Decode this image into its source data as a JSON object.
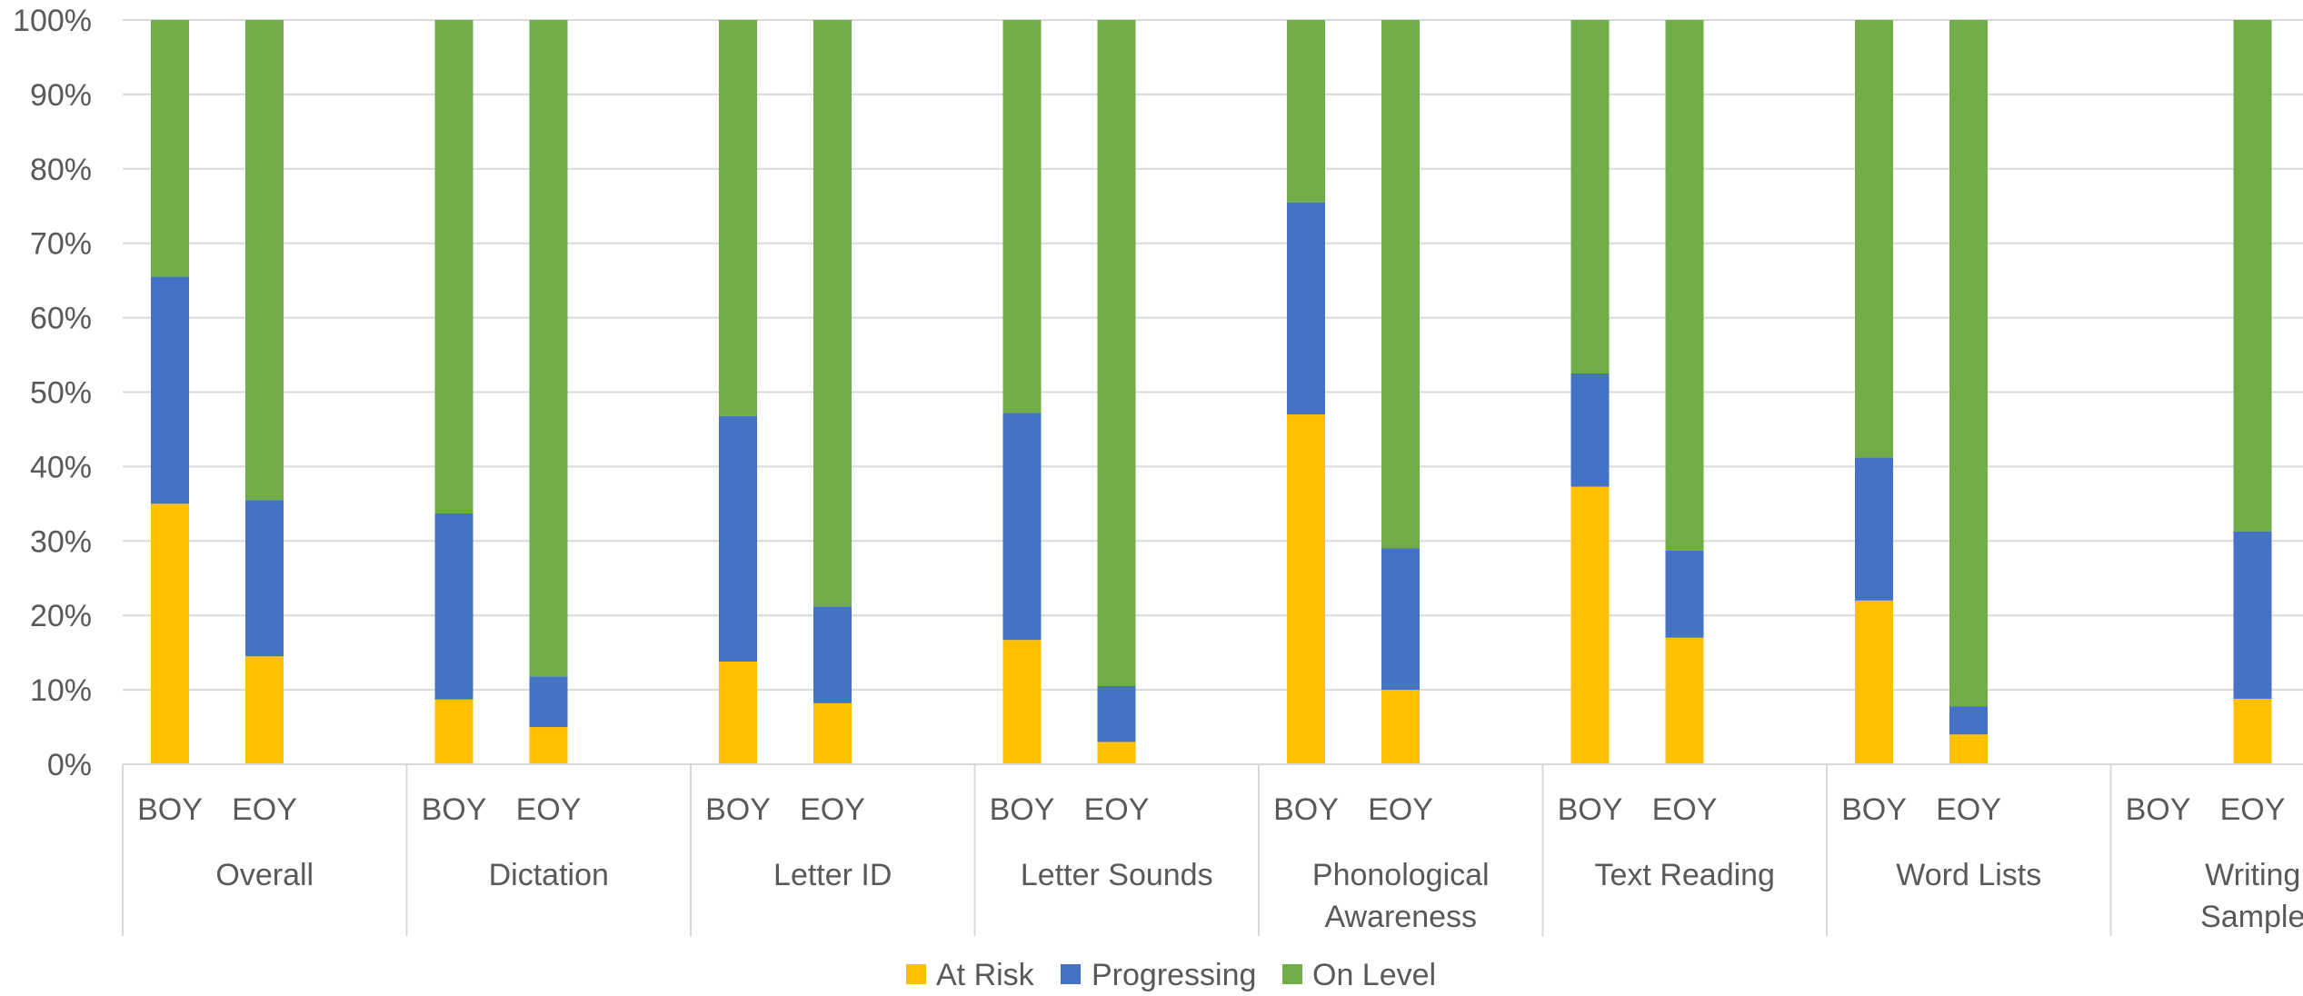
{
  "chart_data": {
    "type": "bar",
    "stacked": true,
    "percent_stacked": true,
    "y_tick_labels": [
      "0%",
      "10%",
      "20%",
      "30%",
      "40%",
      "50%",
      "60%",
      "70%",
      "80%",
      "90%",
      "100%"
    ],
    "ylim": [
      0,
      100
    ],
    "grid": true,
    "legend_position": "bottom",
    "groups": [
      "Overall",
      "Dictation",
      "Letter ID",
      "Letter Sounds",
      "Phonological Awareness",
      "Text Reading",
      "Word Lists",
      "Writing Sample"
    ],
    "group_label_lines": [
      [
        "Overall"
      ],
      [
        "Dictation"
      ],
      [
        "Letter ID"
      ],
      [
        "Letter Sounds"
      ],
      [
        "Phonological",
        "Awareness"
      ],
      [
        "Text Reading"
      ],
      [
        "Word Lists"
      ],
      [
        "Writing",
        "Sample"
      ]
    ],
    "subcategories": [
      "BOY",
      "EOY"
    ],
    "series": [
      {
        "name": "At Risk",
        "color": "#FFC000",
        "values": [
          35,
          14.5,
          8.7,
          5,
          13.8,
          8.2,
          16.7,
          3,
          47,
          10,
          37.3,
          17,
          22,
          4,
          0,
          8.8
        ]
      },
      {
        "name": "Progressing",
        "color": "#4472C4",
        "values": [
          30.5,
          21,
          25,
          6.8,
          33,
          13,
          30.5,
          7.5,
          28.5,
          19,
          15.2,
          11.7,
          19.2,
          3.8,
          0,
          22.5
        ]
      },
      {
        "name": "On Level",
        "color": "#70AD47",
        "values": [
          34.5,
          64.5,
          66.3,
          88.2,
          53.2,
          78.8,
          52.8,
          89.5,
          24.5,
          71,
          47.5,
          71.3,
          58.8,
          92.2,
          0,
          68.7
        ]
      }
    ]
  }
}
